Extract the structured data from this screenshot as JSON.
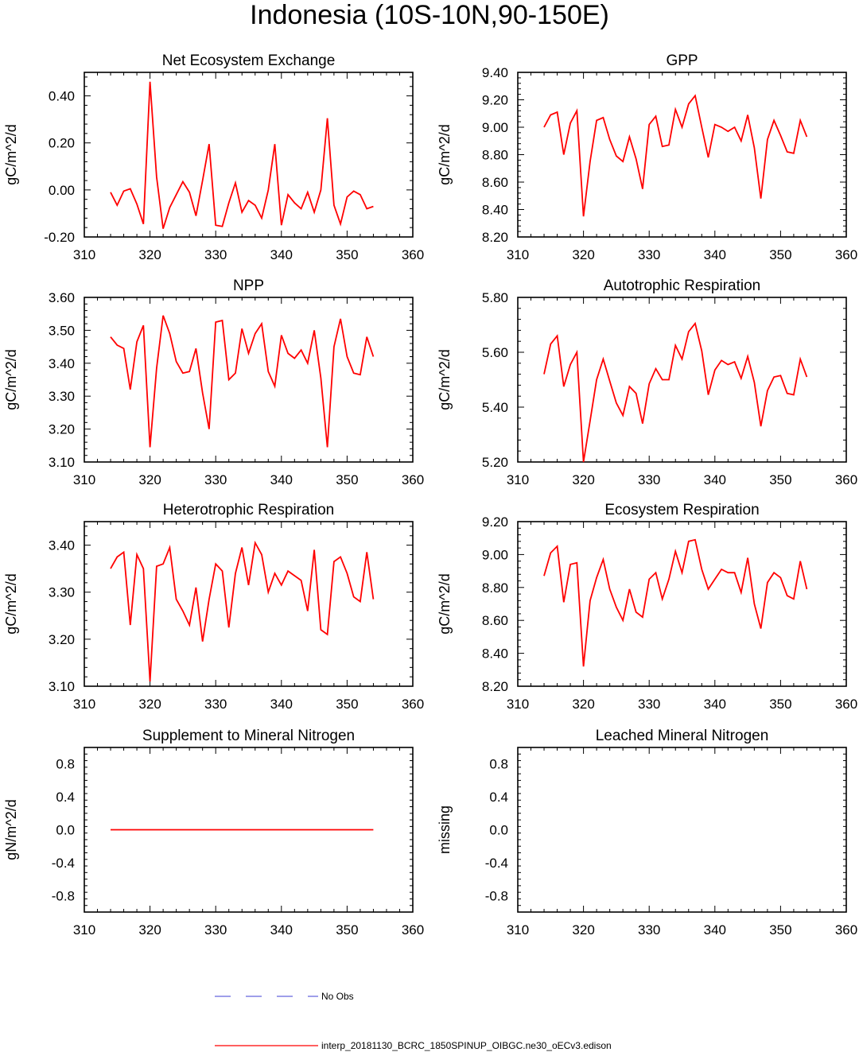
{
  "figure": {
    "title": "Indonesia (10S-10N,90-150E)",
    "legend": [
      {
        "label": "No Obs",
        "color": "#6666dd",
        "style": "dashed"
      },
      {
        "label": "interp_20181130_BCRC_1850SPINUP_OIBGC.ne30_oECv3.edison",
        "color": "#ff0000",
        "style": "solid"
      }
    ]
  },
  "chart_data": [
    {
      "type": "line",
      "title": "Net Ecosystem Exchange",
      "ylabel": "gC/m^2/d",
      "xlim": [
        310,
        360
      ],
      "ylim": [
        -0.2,
        0.5
      ],
      "xticks": [
        310,
        320,
        330,
        340,
        350,
        360
      ],
      "xtick_labels": [
        "310",
        "320",
        "330",
        "340",
        "350",
        "360"
      ],
      "yticks": [
        -0.2,
        0.0,
        0.2,
        0.4
      ],
      "ytick_labels": [
        "-0.20",
        "0.00",
        "0.20",
        "0.40"
      ],
      "color": "#ff0000",
      "x": [
        314,
        315,
        316,
        317,
        318,
        319,
        320,
        321,
        322,
        323,
        324,
        325,
        326,
        327,
        328,
        329,
        330,
        331,
        332,
        333,
        334,
        335,
        336,
        337,
        338,
        339,
        340,
        341,
        342,
        343,
        344,
        345,
        346,
        347,
        348,
        349,
        350,
        351,
        352,
        353,
        354
      ],
      "values": [
        -0.01,
        -0.065,
        -0.005,
        0.005,
        -0.06,
        -0.145,
        0.46,
        0.055,
        -0.165,
        -0.075,
        -0.02,
        0.035,
        -0.01,
        -0.11,
        0.04,
        0.195,
        -0.15,
        -0.155,
        -0.055,
        0.03,
        -0.095,
        -0.045,
        -0.065,
        -0.12,
        0.0,
        0.195,
        -0.15,
        -0.02,
        -0.055,
        -0.08,
        -0.01,
        -0.095,
        0.0,
        0.305,
        -0.065,
        -0.145,
        -0.03,
        -0.005,
        -0.02,
        -0.08,
        -0.07
      ]
    },
    {
      "type": "line",
      "title": "GPP",
      "ylabel": "gC/m^2/d",
      "xlim": [
        310,
        360
      ],
      "ylim": [
        8.2,
        9.4
      ],
      "xticks": [
        310,
        320,
        330,
        340,
        350,
        360
      ],
      "xtick_labels": [
        "310",
        "320",
        "330",
        "340",
        "350",
        "360"
      ],
      "yticks": [
        8.2,
        8.4,
        8.6,
        8.8,
        9.0,
        9.2,
        9.4
      ],
      "ytick_labels": [
        "8.20",
        "8.40",
        "8.60",
        "8.80",
        "9.00",
        "9.20",
        "9.40"
      ],
      "color": "#ff0000",
      "x": [
        314,
        315,
        316,
        317,
        318,
        319,
        320,
        321,
        322,
        323,
        324,
        325,
        326,
        327,
        328,
        329,
        330,
        331,
        332,
        333,
        334,
        335,
        336,
        337,
        338,
        339,
        340,
        341,
        342,
        343,
        344,
        345,
        346,
        347,
        348,
        349,
        350,
        351,
        352,
        353,
        354
      ],
      "values": [
        9.0,
        9.09,
        9.11,
        8.8,
        9.03,
        9.12,
        8.35,
        8.75,
        9.05,
        9.07,
        8.91,
        8.79,
        8.75,
        8.93,
        8.77,
        8.55,
        9.02,
        9.08,
        8.86,
        8.87,
        9.13,
        9.0,
        9.17,
        9.23,
        9.0,
        8.78,
        9.02,
        9.0,
        8.97,
        9.0,
        8.9,
        9.09,
        8.85,
        8.48,
        8.91,
        9.05,
        8.94,
        8.82,
        8.81,
        9.05,
        8.93
      ]
    },
    {
      "type": "line",
      "title": "NPP",
      "ylabel": "gC/m^2/d",
      "xlim": [
        310,
        360
      ],
      "ylim": [
        3.1,
        3.6
      ],
      "xticks": [
        310,
        320,
        330,
        340,
        350,
        360
      ],
      "xtick_labels": [
        "310",
        "320",
        "330",
        "340",
        "350",
        "360"
      ],
      "yticks": [
        3.1,
        3.2,
        3.3,
        3.4,
        3.5,
        3.6
      ],
      "ytick_labels": [
        "3.10",
        "3.20",
        "3.30",
        "3.40",
        "3.50",
        "3.60"
      ],
      "color": "#ff0000",
      "x": [
        314,
        315,
        316,
        317,
        318,
        319,
        320,
        321,
        322,
        323,
        324,
        325,
        326,
        327,
        328,
        329,
        330,
        331,
        332,
        333,
        334,
        335,
        336,
        337,
        338,
        339,
        340,
        341,
        342,
        343,
        344,
        345,
        346,
        347,
        348,
        349,
        350,
        351,
        352,
        353,
        354
      ],
      "values": [
        3.48,
        3.455,
        3.445,
        3.32,
        3.465,
        3.515,
        3.145,
        3.385,
        3.545,
        3.49,
        3.405,
        3.37,
        3.375,
        3.445,
        3.31,
        3.2,
        3.525,
        3.53,
        3.35,
        3.37,
        3.505,
        3.43,
        3.49,
        3.52,
        3.375,
        3.33,
        3.485,
        3.43,
        3.415,
        3.44,
        3.4,
        3.5,
        3.355,
        3.145,
        3.45,
        3.535,
        3.42,
        3.37,
        3.365,
        3.48,
        3.42
      ]
    },
    {
      "type": "line",
      "title": "Autotrophic Respiration",
      "ylabel": "gC/m^2/d",
      "xlim": [
        310,
        360
      ],
      "ylim": [
        5.2,
        5.8
      ],
      "xticks": [
        310,
        320,
        330,
        340,
        350,
        360
      ],
      "xtick_labels": [
        "310",
        "320",
        "330",
        "340",
        "350",
        "360"
      ],
      "yticks": [
        5.2,
        5.4,
        5.6,
        5.8
      ],
      "ytick_labels": [
        "5.20",
        "5.40",
        "5.60",
        "5.80"
      ],
      "color": "#ff0000",
      "x": [
        314,
        315,
        316,
        317,
        318,
        319,
        320,
        321,
        322,
        323,
        324,
        325,
        326,
        327,
        328,
        329,
        330,
        331,
        332,
        333,
        334,
        335,
        336,
        337,
        338,
        339,
        340,
        341,
        342,
        343,
        344,
        345,
        346,
        347,
        348,
        349,
        350,
        351,
        352,
        353,
        354
      ],
      "values": [
        5.52,
        5.63,
        5.66,
        5.475,
        5.555,
        5.6,
        5.2,
        5.35,
        5.5,
        5.575,
        5.495,
        5.415,
        5.37,
        5.475,
        5.45,
        5.34,
        5.485,
        5.54,
        5.5,
        5.5,
        5.625,
        5.575,
        5.675,
        5.705,
        5.605,
        5.445,
        5.535,
        5.57,
        5.555,
        5.565,
        5.505,
        5.585,
        5.49,
        5.33,
        5.46,
        5.51,
        5.515,
        5.45,
        5.445,
        5.575,
        5.51
      ]
    },
    {
      "type": "line",
      "title": "Heterotrophic Respiration",
      "ylabel": "gC/m^2/d",
      "xlim": [
        310,
        360
      ],
      "ylim": [
        3.1,
        3.45
      ],
      "xticks": [
        310,
        320,
        330,
        340,
        350,
        360
      ],
      "xtick_labels": [
        "310",
        "320",
        "330",
        "340",
        "350",
        "360"
      ],
      "yticks": [
        3.1,
        3.2,
        3.3,
        3.4
      ],
      "ytick_labels": [
        "3.10",
        "3.20",
        "3.30",
        "3.40"
      ],
      "color": "#ff0000",
      "x": [
        314,
        315,
        316,
        317,
        318,
        319,
        320,
        321,
        322,
        323,
        324,
        325,
        326,
        327,
        328,
        329,
        330,
        331,
        332,
        333,
        334,
        335,
        336,
        337,
        338,
        339,
        340,
        341,
        342,
        343,
        344,
        345,
        346,
        347,
        348,
        349,
        350,
        351,
        352,
        353,
        354
      ],
      "values": [
        3.35,
        3.375,
        3.385,
        3.23,
        3.38,
        3.35,
        3.11,
        3.355,
        3.36,
        3.395,
        3.285,
        3.26,
        3.23,
        3.31,
        3.195,
        3.285,
        3.36,
        3.345,
        3.225,
        3.34,
        3.395,
        3.315,
        3.405,
        3.38,
        3.3,
        3.34,
        3.315,
        3.345,
        3.335,
        3.325,
        3.26,
        3.39,
        3.22,
        3.21,
        3.365,
        3.375,
        3.34,
        3.29,
        3.28,
        3.385,
        3.285
      ]
    },
    {
      "type": "line",
      "title": "Ecosystem Respiration",
      "ylabel": "gC/m^2/d",
      "xlim": [
        310,
        360
      ],
      "ylim": [
        8.2,
        9.2
      ],
      "xticks": [
        310,
        320,
        330,
        340,
        350,
        360
      ],
      "xtick_labels": [
        "310",
        "320",
        "330",
        "340",
        "350",
        "360"
      ],
      "yticks": [
        8.2,
        8.4,
        8.6,
        8.8,
        9.0,
        9.2
      ],
      "ytick_labels": [
        "8.20",
        "8.40",
        "8.60",
        "8.80",
        "9.00",
        "9.20"
      ],
      "color": "#ff0000",
      "x": [
        314,
        315,
        316,
        317,
        318,
        319,
        320,
        321,
        322,
        323,
        324,
        325,
        326,
        327,
        328,
        329,
        330,
        331,
        332,
        333,
        334,
        335,
        336,
        337,
        338,
        339,
        340,
        341,
        342,
        343,
        344,
        345,
        346,
        347,
        348,
        349,
        350,
        351,
        352,
        353,
        354
      ],
      "values": [
        8.87,
        9.01,
        9.05,
        8.71,
        8.94,
        8.95,
        8.32,
        8.72,
        8.86,
        8.97,
        8.79,
        8.68,
        8.6,
        8.79,
        8.65,
        8.62,
        8.85,
        8.89,
        8.73,
        8.85,
        9.02,
        8.89,
        9.08,
        9.09,
        8.91,
        8.79,
        8.85,
        8.91,
        8.89,
        8.89,
        8.77,
        8.98,
        8.7,
        8.55,
        8.83,
        8.89,
        8.86,
        8.75,
        8.73,
        8.96,
        8.79
      ]
    },
    {
      "type": "line",
      "title": "Supplement to Mineral Nitrogen",
      "ylabel": "gN/m^2/d",
      "xlim": [
        310,
        360
      ],
      "ylim": [
        -1.0,
        1.0
      ],
      "xticks": [
        310,
        320,
        330,
        340,
        350,
        360
      ],
      "xtick_labels": [
        "310",
        "320",
        "330",
        "340",
        "350",
        "360"
      ],
      "yticks": [
        -0.8,
        -0.4,
        0.0,
        0.4,
        0.8
      ],
      "ytick_labels": [
        "-0.8",
        "-0.4",
        "0.0",
        "0.4",
        "0.8"
      ],
      "color": "#ff0000",
      "x": [
        314,
        354
      ],
      "values": [
        0.0,
        0.0
      ]
    },
    {
      "type": "line",
      "title": "Leached Mineral Nitrogen",
      "ylabel": "missing",
      "xlim": [
        310,
        360
      ],
      "ylim": [
        -1.0,
        1.0
      ],
      "xticks": [
        310,
        320,
        330,
        340,
        350,
        360
      ],
      "xtick_labels": [
        "310",
        "320",
        "330",
        "340",
        "350",
        "360"
      ],
      "yticks": [
        -0.8,
        -0.4,
        0.0,
        0.4,
        0.8
      ],
      "ytick_labels": [
        "-0.8",
        "-0.4",
        "0.0",
        "0.4",
        "0.8"
      ],
      "color": "#ff0000",
      "x": [],
      "values": []
    }
  ]
}
